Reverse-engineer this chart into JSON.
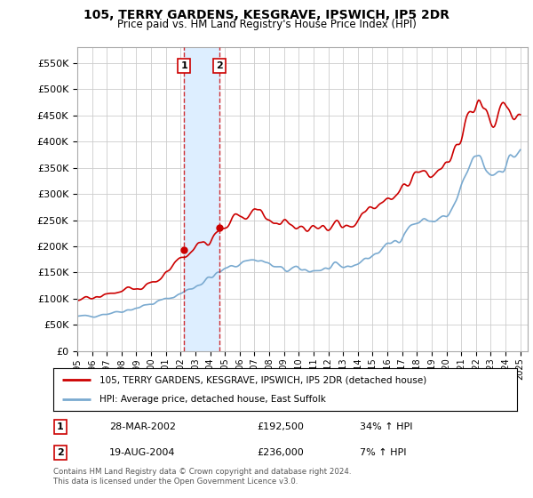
{
  "title": "105, TERRY GARDENS, KESGRAVE, IPSWICH, IP5 2DR",
  "subtitle": "Price paid vs. HM Land Registry's House Price Index (HPI)",
  "yticks": [
    0,
    50000,
    100000,
    150000,
    200000,
    250000,
    300000,
    350000,
    400000,
    450000,
    500000,
    550000
  ],
  "ytick_labels": [
    "£0",
    "£50K",
    "£100K",
    "£150K",
    "£200K",
    "£250K",
    "£300K",
    "£350K",
    "£400K",
    "£450K",
    "£500K",
    "£550K"
  ],
  "ylim": [
    0,
    580000
  ],
  "sale1_year": 2002.23,
  "sale1_price": 192500,
  "sale1_label": "1",
  "sale1_date": "28-MAR-2002",
  "sale1_hpi": "34% ↑ HPI",
  "sale2_year": 2004.63,
  "sale2_price": 236000,
  "sale2_label": "2",
  "sale2_date": "19-AUG-2004",
  "sale2_hpi": "7% ↑ HPI",
  "red_line_color": "#cc0000",
  "blue_line_color": "#7aaad0",
  "highlight_fill": "#ddeeff",
  "grid_color": "#cccccc",
  "background_color": "#ffffff",
  "legend_label_red": "105, TERRY GARDENS, KESGRAVE, IPSWICH, IP5 2DR (detached house)",
  "legend_label_blue": "HPI: Average price, detached house, East Suffolk",
  "footnote": "Contains HM Land Registry data © Crown copyright and database right 2024.\nThis data is licensed under the Open Government Licence v3.0."
}
